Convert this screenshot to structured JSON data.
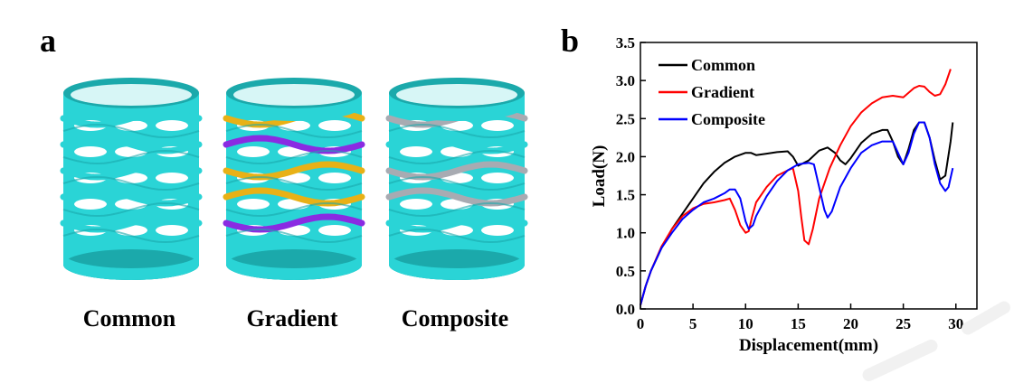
{
  "panel_a": {
    "label": "a",
    "springs": [
      {
        "caption": "Common",
        "ring_colors": [
          "#2ad4d6",
          "#2ad4d6",
          "#2ad4d6",
          "#2ad4d6",
          "#2ad4d6",
          "#2ad4d6"
        ]
      },
      {
        "caption": "Gradient",
        "ring_colors": [
          "#e8b116",
          "#8a2be2",
          "#e8b116",
          "#e8b116",
          "#8a2be2",
          "#2ad4d6"
        ]
      },
      {
        "caption": "Composite",
        "ring_colors": [
          "#a8abb2",
          "#2ad4d6",
          "#a8abb2",
          "#a8abb2",
          "#2ad4d6",
          "#2ad4d6"
        ]
      }
    ],
    "colors": {
      "base": "#2ad4d6",
      "base_dark": "#1ba9ab",
      "gold": "#e8b116",
      "purple": "#8a2be2",
      "gray": "#a8abb2"
    }
  },
  "panel_b": {
    "label": "b"
  },
  "chart_data": {
    "type": "line",
    "xlabel": "Displacement(mm)",
    "ylabel": "Load(N)",
    "xlim": [
      0,
      32
    ],
    "ylim": [
      0,
      3.5
    ],
    "xticks": [
      0,
      5,
      10,
      15,
      20,
      25,
      30
    ],
    "yticks": [
      0.0,
      0.5,
      1.0,
      1.5,
      2.0,
      2.5,
      3.0,
      3.5
    ],
    "xtick_labels": [
      "0",
      "5",
      "10",
      "15",
      "20",
      "25",
      "30"
    ],
    "ytick_labels": [
      "0.0",
      "0.5",
      "1.0",
      "1.5",
      "2.0",
      "2.5",
      "3.0",
      "3.5"
    ],
    "grid": false,
    "legend_position": "top-left",
    "series": [
      {
        "name": "Common",
        "color": "#000000",
        "x": [
          0,
          0.5,
          1,
          2,
          3,
          4,
          5,
          6,
          7,
          8,
          9,
          10,
          10.5,
          11,
          12,
          13,
          14,
          14.5,
          15,
          16,
          17,
          17.8,
          18.5,
          19,
          19.5,
          20,
          21,
          22,
          23,
          23.5,
          24,
          24.5,
          25,
          25.5,
          26,
          26.5,
          27,
          27.5,
          28,
          28.5,
          29,
          29.5,
          29.7
        ],
        "y": [
          0.05,
          0.3,
          0.5,
          0.8,
          1.05,
          1.25,
          1.45,
          1.65,
          1.8,
          1.92,
          2.0,
          2.05,
          2.05,
          2.02,
          2.04,
          2.06,
          2.07,
          2.0,
          1.88,
          1.95,
          2.08,
          2.12,
          2.05,
          1.95,
          1.9,
          1.98,
          2.18,
          2.3,
          2.35,
          2.35,
          2.2,
          2.0,
          1.9,
          2.1,
          2.35,
          2.45,
          2.45,
          2.25,
          1.95,
          1.7,
          1.75,
          2.2,
          2.45
        ]
      },
      {
        "name": "Gradient",
        "color": "#ff0000",
        "x": [
          0,
          0.5,
          1,
          2,
          3,
          4,
          5,
          6,
          7,
          8,
          8.5,
          9,
          9.5,
          10,
          10.3,
          10.6,
          11,
          12,
          13,
          14,
          14.5,
          15,
          15.3,
          15.6,
          16,
          16.4,
          17,
          18,
          19,
          20,
          21,
          22,
          23,
          24,
          25,
          26,
          26.5,
          27,
          27.5,
          28,
          28.5,
          29,
          29.5
        ],
        "y": [
          0.05,
          0.3,
          0.5,
          0.82,
          1.05,
          1.22,
          1.32,
          1.38,
          1.4,
          1.43,
          1.45,
          1.3,
          1.1,
          1.0,
          1.02,
          1.2,
          1.4,
          1.6,
          1.75,
          1.82,
          1.85,
          1.55,
          1.2,
          0.9,
          0.85,
          1.05,
          1.45,
          1.85,
          2.15,
          2.4,
          2.58,
          2.7,
          2.78,
          2.8,
          2.78,
          2.9,
          2.93,
          2.92,
          2.85,
          2.8,
          2.82,
          2.95,
          3.15
        ]
      },
      {
        "name": "Composite",
        "color": "#0000ff",
        "x": [
          0,
          0.5,
          1,
          2,
          3,
          4,
          5,
          6,
          7,
          8,
          8.5,
          9,
          9.5,
          10,
          10.3,
          10.7,
          11,
          12,
          13,
          14,
          15,
          16,
          16.5,
          17,
          17.5,
          17.8,
          18.2,
          19,
          20,
          21,
          22,
          23,
          24,
          24.5,
          25,
          25.5,
          26,
          26.5,
          27,
          27.5,
          28,
          28.5,
          29,
          29.3,
          29.7
        ],
        "y": [
          0.05,
          0.3,
          0.5,
          0.8,
          1.0,
          1.18,
          1.3,
          1.4,
          1.45,
          1.52,
          1.57,
          1.57,
          1.45,
          1.15,
          1.05,
          1.1,
          1.22,
          1.48,
          1.68,
          1.82,
          1.9,
          1.92,
          1.9,
          1.6,
          1.3,
          1.2,
          1.28,
          1.6,
          1.85,
          2.05,
          2.15,
          2.2,
          2.2,
          2.05,
          1.9,
          2.05,
          2.3,
          2.45,
          2.45,
          2.25,
          1.9,
          1.65,
          1.55,
          1.6,
          1.85
        ]
      }
    ]
  }
}
